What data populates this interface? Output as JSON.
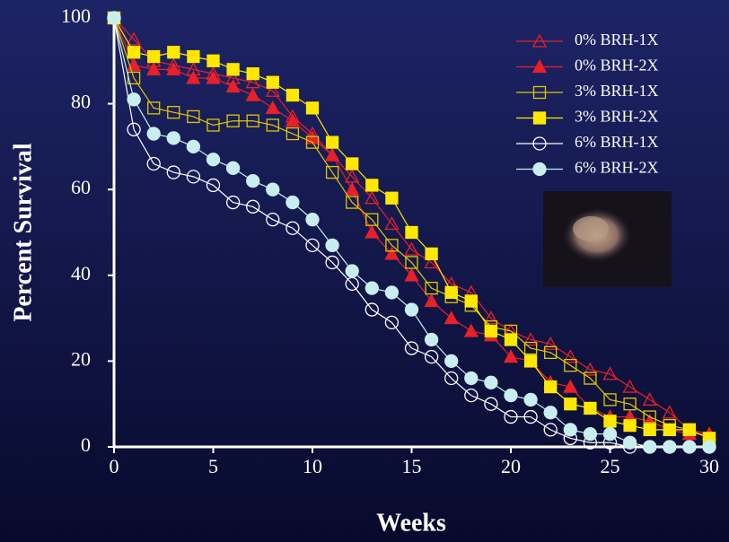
{
  "chart_data": {
    "type": "line",
    "xlabel": "Weeks",
    "ylabel": "Percent Survival",
    "x": [
      0,
      1,
      2,
      3,
      4,
      5,
      6,
      7,
      8,
      9,
      10,
      11,
      12,
      13,
      14,
      15,
      16,
      17,
      18,
      19,
      20,
      21,
      22,
      23,
      24,
      25,
      26,
      27,
      28,
      29,
      30
    ],
    "xlim": [
      0,
      30
    ],
    "xticks": [
      0,
      5,
      10,
      15,
      20,
      25,
      30
    ],
    "ylim": [
      0,
      100
    ],
    "yticks": [
      0,
      20,
      40,
      60,
      80,
      100
    ],
    "series": [
      {
        "name": "0% BRH-1X",
        "color": "#e8202a",
        "marker": "triangle",
        "filled": false,
        "values": [
          100,
          95,
          90,
          89,
          88,
          87,
          86,
          85,
          83,
          77,
          73,
          68,
          63,
          58,
          52,
          46,
          43,
          38,
          36,
          30,
          27,
          25,
          24,
          21,
          18,
          17,
          14,
          11,
          8,
          4,
          3
        ]
      },
      {
        "name": "0% BRH-2X",
        "color": "#e8202a",
        "marker": "triangle",
        "filled": true,
        "values": [
          100,
          89,
          88,
          88,
          86,
          86,
          84,
          82,
          79,
          76,
          72,
          68,
          60,
          50,
          45,
          40,
          34,
          30,
          27,
          26,
          21,
          20,
          15,
          14,
          9,
          7,
          7,
          6,
          4,
          3,
          3
        ]
      },
      {
        "name": "3% BRH-1X",
        "color": "#e0c800",
        "marker": "square",
        "filled": false,
        "values": [
          100,
          86,
          79,
          78,
          77,
          75,
          76,
          76,
          75,
          73,
          71,
          64,
          57,
          53,
          47,
          43,
          37,
          35,
          33,
          28,
          27,
          23,
          22,
          19,
          16,
          11,
          10,
          7,
          5,
          4,
          2
        ]
      },
      {
        "name": "3% BRH-2X",
        "color": "#ffe800",
        "marker": "square",
        "filled": true,
        "values": [
          100,
          92,
          91,
          92,
          91,
          90,
          88,
          87,
          85,
          82,
          79,
          71,
          66,
          61,
          58,
          50,
          45,
          36,
          34,
          27,
          25,
          20,
          14,
          10,
          9,
          6,
          5,
          4,
          4,
          4,
          2
        ]
      },
      {
        "name": "6% BRH-1X",
        "color": "#ffffff",
        "marker": "circle",
        "filled": false,
        "values": [
          100,
          74,
          66,
          64,
          63,
          61,
          57,
          56,
          53,
          51,
          47,
          43,
          38,
          32,
          29,
          23,
          21,
          16,
          12,
          10,
          7,
          7,
          4,
          2,
          1,
          1,
          0,
          0,
          0,
          0,
          0
        ]
      },
      {
        "name": "6% BRH-2X",
        "color": "#c8eef0",
        "marker": "circle",
        "filled": true,
        "values": [
          100,
          81,
          73,
          72,
          70,
          67,
          65,
          62,
          60,
          57,
          53,
          47,
          41,
          37,
          36,
          32,
          25,
          20,
          16,
          15,
          12,
          11,
          8,
          4,
          3,
          3,
          1,
          0,
          0,
          0,
          0
        ]
      }
    ]
  }
}
